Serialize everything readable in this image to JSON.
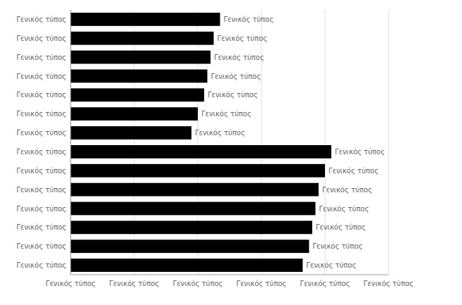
{
  "chart_data": {
    "type": "bar",
    "orientation": "horizontal",
    "categories": [
      "Γενικός τύπος",
      "Γενικός τύπος",
      "Γενικός τύπος",
      "Γενικός τύπος",
      "Γενικός τύπος",
      "Γενικός τύπος",
      "Γενικός τύπος",
      "Γενικός τύπος",
      "Γενικός τύπος",
      "Γενικός τύπος",
      "Γενικός τύπος",
      "Γενικός τύπος",
      "Γενικός τύπος",
      "Γενικός τύπος"
    ],
    "values": [
      47,
      45,
      44,
      43,
      42,
      40,
      38,
      82,
      80,
      78,
      77,
      76,
      75,
      73
    ],
    "value_labels": [
      "Γενικός τύπος",
      "Γενικός τύπος",
      "Γενικός τύπος",
      "Γενικός τύπος",
      "Γενικός τύπος",
      "Γενικός τύπος",
      "Γενικός τύπος",
      "Γενικός τύπος",
      "Γενικός τύπος",
      "Γενικός τύπος",
      "Γενικός τύπος",
      "Γενικός τύπος",
      "Γενικός τύπος",
      "Γενικός τύπος"
    ],
    "data_labels": true,
    "color": "#000000",
    "xlim": [
      0,
      100
    ],
    "xticks": [
      {
        "value": 0,
        "label": "Γενικός τύπος"
      },
      {
        "value": 20,
        "label": "Γενικός τύπος"
      },
      {
        "value": 40,
        "label": "Γενικός τύπος"
      },
      {
        "value": 60,
        "label": "Γενικός τύπος"
      },
      {
        "value": 80,
        "label": "Γενικός τύπος"
      },
      {
        "value": 100,
        "label": "Γενικός τύπος"
      }
    ],
    "grid": true
  }
}
